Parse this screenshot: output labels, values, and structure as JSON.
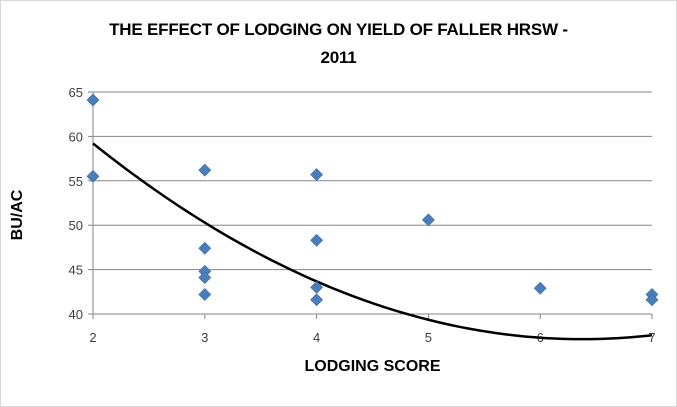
{
  "chart_data": {
    "type": "scatter",
    "title_lines": [
      "THE EFFECT OF LODGING ON YIELD OF FALLER HRSW -",
      "2011"
    ],
    "xlabel": "LODGING SCORE",
    "ylabel": "BU/AC",
    "xlim": [
      2,
      7
    ],
    "ylim": [
      40,
      65
    ],
    "x_ticks": [
      2,
      3,
      4,
      5,
      6,
      7
    ],
    "y_ticks": [
      40,
      45,
      50,
      55,
      60,
      65
    ],
    "grid": "horizontal",
    "legend": "none",
    "marker_color": "#4a7ebb",
    "trend_color": "#000000",
    "points": [
      {
        "x": 2,
        "y": 64.1
      },
      {
        "x": 2,
        "y": 55.5
      },
      {
        "x": 3,
        "y": 56.2
      },
      {
        "x": 3,
        "y": 47.4
      },
      {
        "x": 3,
        "y": 44.8
      },
      {
        "x": 3,
        "y": 44.1
      },
      {
        "x": 3,
        "y": 42.2
      },
      {
        "x": 4,
        "y": 55.7
      },
      {
        "x": 4,
        "y": 48.3
      },
      {
        "x": 4,
        "y": 43.0
      },
      {
        "x": 4,
        "y": 41.6
      },
      {
        "x": 5,
        "y": 50.6
      },
      {
        "x": 6,
        "y": 42.9
      },
      {
        "x": 7,
        "y": 42.2
      },
      {
        "x": 7,
        "y": 41.6
      }
    ],
    "trendline": {
      "type": "polynomial",
      "order": 2,
      "coefficients": [
        83.95,
        -14.67,
        1.15
      ]
    }
  }
}
